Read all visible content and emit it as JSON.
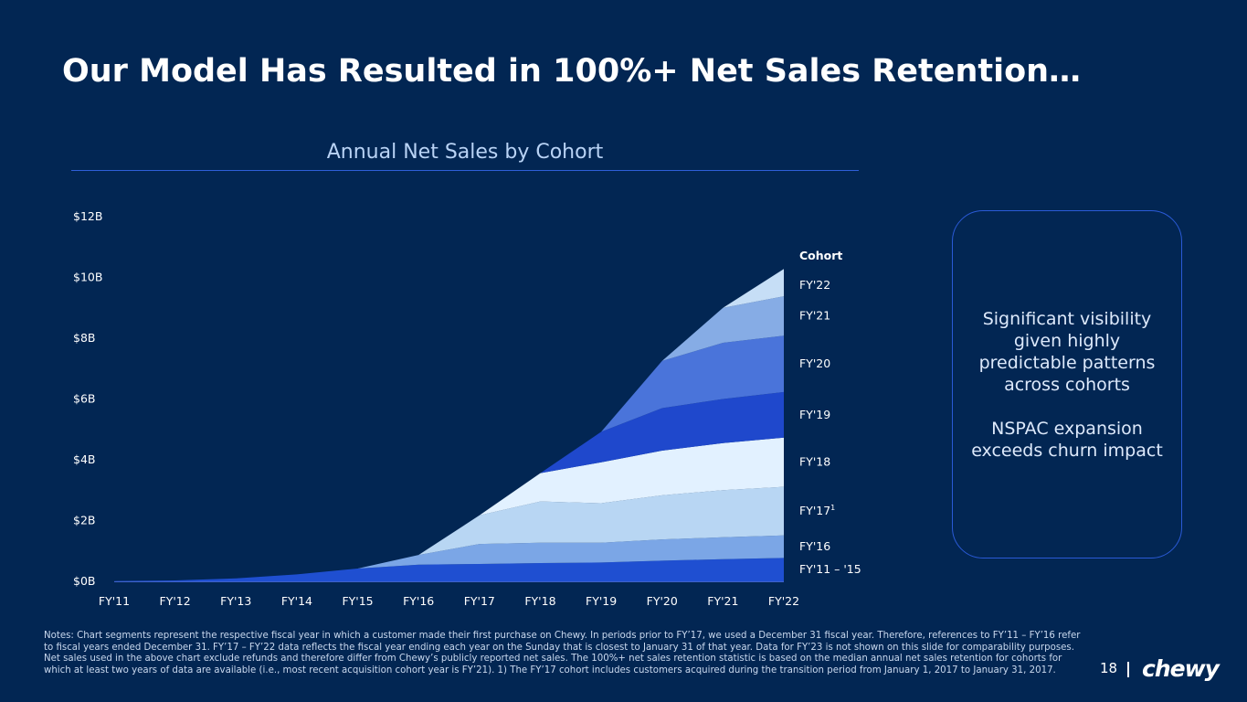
{
  "slide": {
    "title": "Our Model Has Resulted in 100%+ Net Sales Retention…",
    "page_number": "18",
    "logo_text": "chewy"
  },
  "callout": {
    "line1": "Significant visibility given highly predictable patterns across cohorts",
    "line2": "NSPAC expansion exceeds churn impact"
  },
  "notes": "Notes: Chart segments represent the respective fiscal year in which a customer made their first purchase on Chewy. In periods prior to FY’17, we used a December 31 fiscal year. Therefore, references to FY’11 – FY’16 refer to fiscal years ended December 31. FY’17 – FY’22 data reflects the fiscal year ending each year on the Sunday that is closest to January 31 of that year. Data for FY’23 is not shown on this slide for comparability purposes. Net sales used in the above chart exclude refunds and therefore differ from Chewy’s publicly reported net sales. The 100%+ net sales retention statistic is based on the median annual net sales retention for cohorts for which at least two years of data are available (i.e., most recent acquisition cohort year is FY’21). 1) The FY’17 cohort includes customers acquired during the transition period from January 1, 2017 to January 31, 2017.",
  "chart_data": {
    "type": "area",
    "title": "Annual Net Sales by Cohort",
    "legend_title": "Cohort",
    "y_unit": "$B",
    "ylim": [
      0,
      12
    ],
    "y_ticks": [
      0,
      2,
      4,
      6,
      8,
      10,
      12
    ],
    "y_tick_labels": [
      "$0B",
      "$2B",
      "$4B",
      "$6B",
      "$8B",
      "$10B",
      "$12B"
    ],
    "categories": [
      "FY'11",
      "FY'12",
      "FY'13",
      "FY'14",
      "FY'15",
      "FY'16",
      "FY'17",
      "FY'18",
      "FY'19",
      "FY'20",
      "FY'21",
      "FY'22"
    ],
    "series": [
      {
        "name": "FY'11 – '15",
        "color": "#1f4fd1",
        "values": [
          0.01,
          0.03,
          0.1,
          0.23,
          0.42,
          0.55,
          0.57,
          0.6,
          0.62,
          0.68,
          0.73,
          0.77
        ]
      },
      {
        "name": "FY'16",
        "color": "#7ba6e6",
        "values": [
          0,
          0,
          0,
          0,
          0,
          0.32,
          0.66,
          0.67,
          0.65,
          0.7,
          0.72,
          0.74
        ]
      },
      {
        "name": "FY'17",
        "legend_label": "FY'17",
        "footnote": "1",
        "color": "#b8d6f3",
        "values": [
          0,
          0,
          0,
          0,
          0,
          0,
          0.94,
          1.36,
          1.3,
          1.45,
          1.55,
          1.6
        ]
      },
      {
        "name": "FY'18",
        "color": "#e2f1ff",
        "values": [
          0,
          0,
          0,
          0,
          0,
          0,
          0,
          0.93,
          1.35,
          1.47,
          1.55,
          1.62
        ]
      },
      {
        "name": "FY'19",
        "color": "#1f48cc",
        "values": [
          0,
          0,
          0,
          0,
          0,
          0,
          0,
          0,
          1.0,
          1.4,
          1.45,
          1.5
        ]
      },
      {
        "name": "FY'20",
        "color": "#4a74da",
        "values": [
          0,
          0,
          0,
          0,
          0,
          0,
          0,
          0,
          0,
          1.55,
          1.85,
          1.85
        ]
      },
      {
        "name": "FY'21",
        "color": "#86ace5",
        "values": [
          0,
          0,
          0,
          0,
          0,
          0,
          0,
          0,
          0,
          0,
          1.15,
          1.3
        ]
      },
      {
        "name": "FY'22",
        "color": "#c6def6",
        "values": [
          0,
          0,
          0,
          0,
          0,
          0,
          0,
          0,
          0,
          0,
          0,
          0.9
        ]
      }
    ]
  }
}
